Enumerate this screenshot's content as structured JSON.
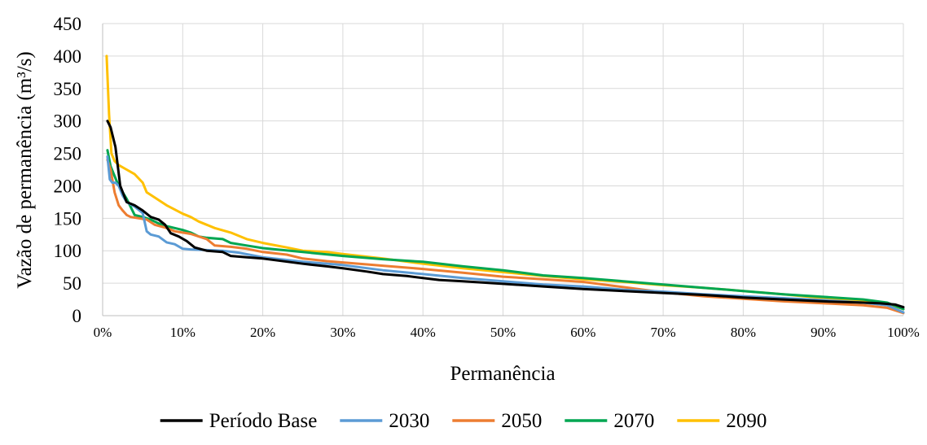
{
  "chart_data": {
    "type": "line",
    "title": "",
    "xlabel": "Permanência",
    "ylabel": "Vazão de permanência (m³/s)",
    "xlim": [
      0,
      100
    ],
    "ylim": [
      0,
      450
    ],
    "y_ticks": [
      "0",
      "50",
      "100",
      "150",
      "200",
      "250",
      "300",
      "350",
      "400",
      "450"
    ],
    "x_ticks": [
      "0%",
      "10%",
      "20%",
      "30%",
      "40%",
      "50%",
      "60%",
      "70%",
      "80%",
      "90%",
      "100%"
    ],
    "grid": "vertical and horizontal gridlines",
    "legend_position": "bottom",
    "series": [
      {
        "name": "Período Base",
        "color": "#000000",
        "x": [
          0.6,
          1.0,
          1.6,
          2.2,
          3.0,
          4.0,
          5.0,
          6.0,
          7.0,
          7.8,
          8.5,
          9.5,
          10.5,
          11.5,
          13,
          15,
          16,
          18,
          20,
          25,
          28,
          30,
          33,
          35,
          38,
          40,
          42,
          45,
          50,
          55,
          60,
          65,
          70,
          75,
          80,
          85,
          90,
          95,
          97,
          99,
          100
        ],
        "y": [
          300,
          290,
          260,
          200,
          175,
          170,
          162,
          152,
          148,
          140,
          127,
          122,
          115,
          105,
          100,
          98,
          92,
          90,
          88,
          80,
          76,
          73,
          68,
          64,
          61,
          58,
          55,
          53,
          49,
          45,
          41,
          38,
          35,
          32,
          28,
          25,
          22,
          20,
          19,
          17,
          13
        ]
      },
      {
        "name": "2030",
        "color": "#5b9bd5",
        "x": [
          0.6,
          0.9,
          1.2,
          1.6,
          2.0,
          2.5,
          3.0,
          4.0,
          5.0,
          5.5,
          6.0,
          7.0,
          8.0,
          9.0,
          10.0,
          11.0,
          13,
          15,
          17,
          20,
          25,
          30,
          35,
          40,
          45,
          50,
          55,
          60,
          65,
          70,
          75,
          80,
          85,
          90,
          95,
          98,
          100
        ],
        "y": [
          245,
          210,
          205,
          205,
          200,
          185,
          175,
          168,
          158,
          130,
          125,
          122,
          113,
          110,
          103,
          102,
          101,
          100,
          97,
          90,
          83,
          78,
          70,
          64,
          58,
          53,
          48,
          45,
          40,
          37,
          33,
          30,
          27,
          24,
          20,
          16,
          5
        ]
      },
      {
        "name": "2050",
        "color": "#ed7d31",
        "x": [
          0.6,
          1.0,
          1.5,
          2.0,
          2.5,
          3.0,
          3.5,
          4.5,
          5.5,
          6.5,
          8.0,
          9.0,
          10.0,
          11.0,
          12.0,
          13.0,
          14.0,
          16,
          18,
          20,
          23,
          25,
          28,
          30,
          33,
          35,
          40,
          45,
          50,
          55,
          60,
          65,
          70,
          75,
          80,
          85,
          90,
          95,
          98,
          100
        ],
        "y": [
          240,
          225,
          190,
          170,
          162,
          155,
          152,
          150,
          148,
          140,
          135,
          130,
          128,
          126,
          122,
          118,
          108,
          106,
          103,
          98,
          94,
          88,
          84,
          82,
          79,
          77,
          72,
          66,
          60,
          56,
          52,
          44,
          36,
          30,
          26,
          22,
          19,
          16,
          12,
          4
        ]
      },
      {
        "name": "2070",
        "color": "#00a651",
        "x": [
          0.6,
          1.0,
          1.5,
          2.0,
          3.0,
          4.0,
          5.0,
          6.0,
          7.0,
          8.0,
          10.0,
          11.0,
          12.0,
          13.0,
          15,
          16,
          18,
          20,
          25,
          30,
          35,
          40,
          45,
          50,
          55,
          60,
          65,
          70,
          75,
          80,
          85,
          90,
          95,
          98,
          100
        ],
        "y": [
          255,
          230,
          215,
          200,
          180,
          155,
          152,
          148,
          142,
          138,
          132,
          128,
          122,
          120,
          118,
          112,
          108,
          104,
          98,
          92,
          87,
          83,
          76,
          70,
          62,
          58,
          53,
          48,
          43,
          38,
          33,
          29,
          25,
          20,
          10
        ]
      },
      {
        "name": "2090",
        "color": "#ffc000",
        "x": [
          0.5,
          0.8,
          1.1,
          1.5,
          2.0,
          3.0,
          4.0,
          5.0,
          5.5,
          6.5,
          8.0,
          10.0,
          11.0,
          12.0,
          13.0,
          14.0,
          16.0,
          18.0,
          20.0,
          23,
          25,
          28,
          30,
          35,
          40,
          45,
          50,
          55,
          60,
          65,
          70,
          75,
          80,
          85,
          90,
          95,
          98,
          100
        ],
        "y": [
          400,
          310,
          250,
          238,
          232,
          225,
          218,
          205,
          190,
          182,
          170,
          157,
          152,
          145,
          140,
          135,
          128,
          118,
          112,
          105,
          100,
          98,
          95,
          88,
          80,
          73,
          67,
          61,
          56,
          52,
          47,
          43,
          38,
          33,
          27,
          22,
          18,
          10
        ]
      }
    ]
  }
}
